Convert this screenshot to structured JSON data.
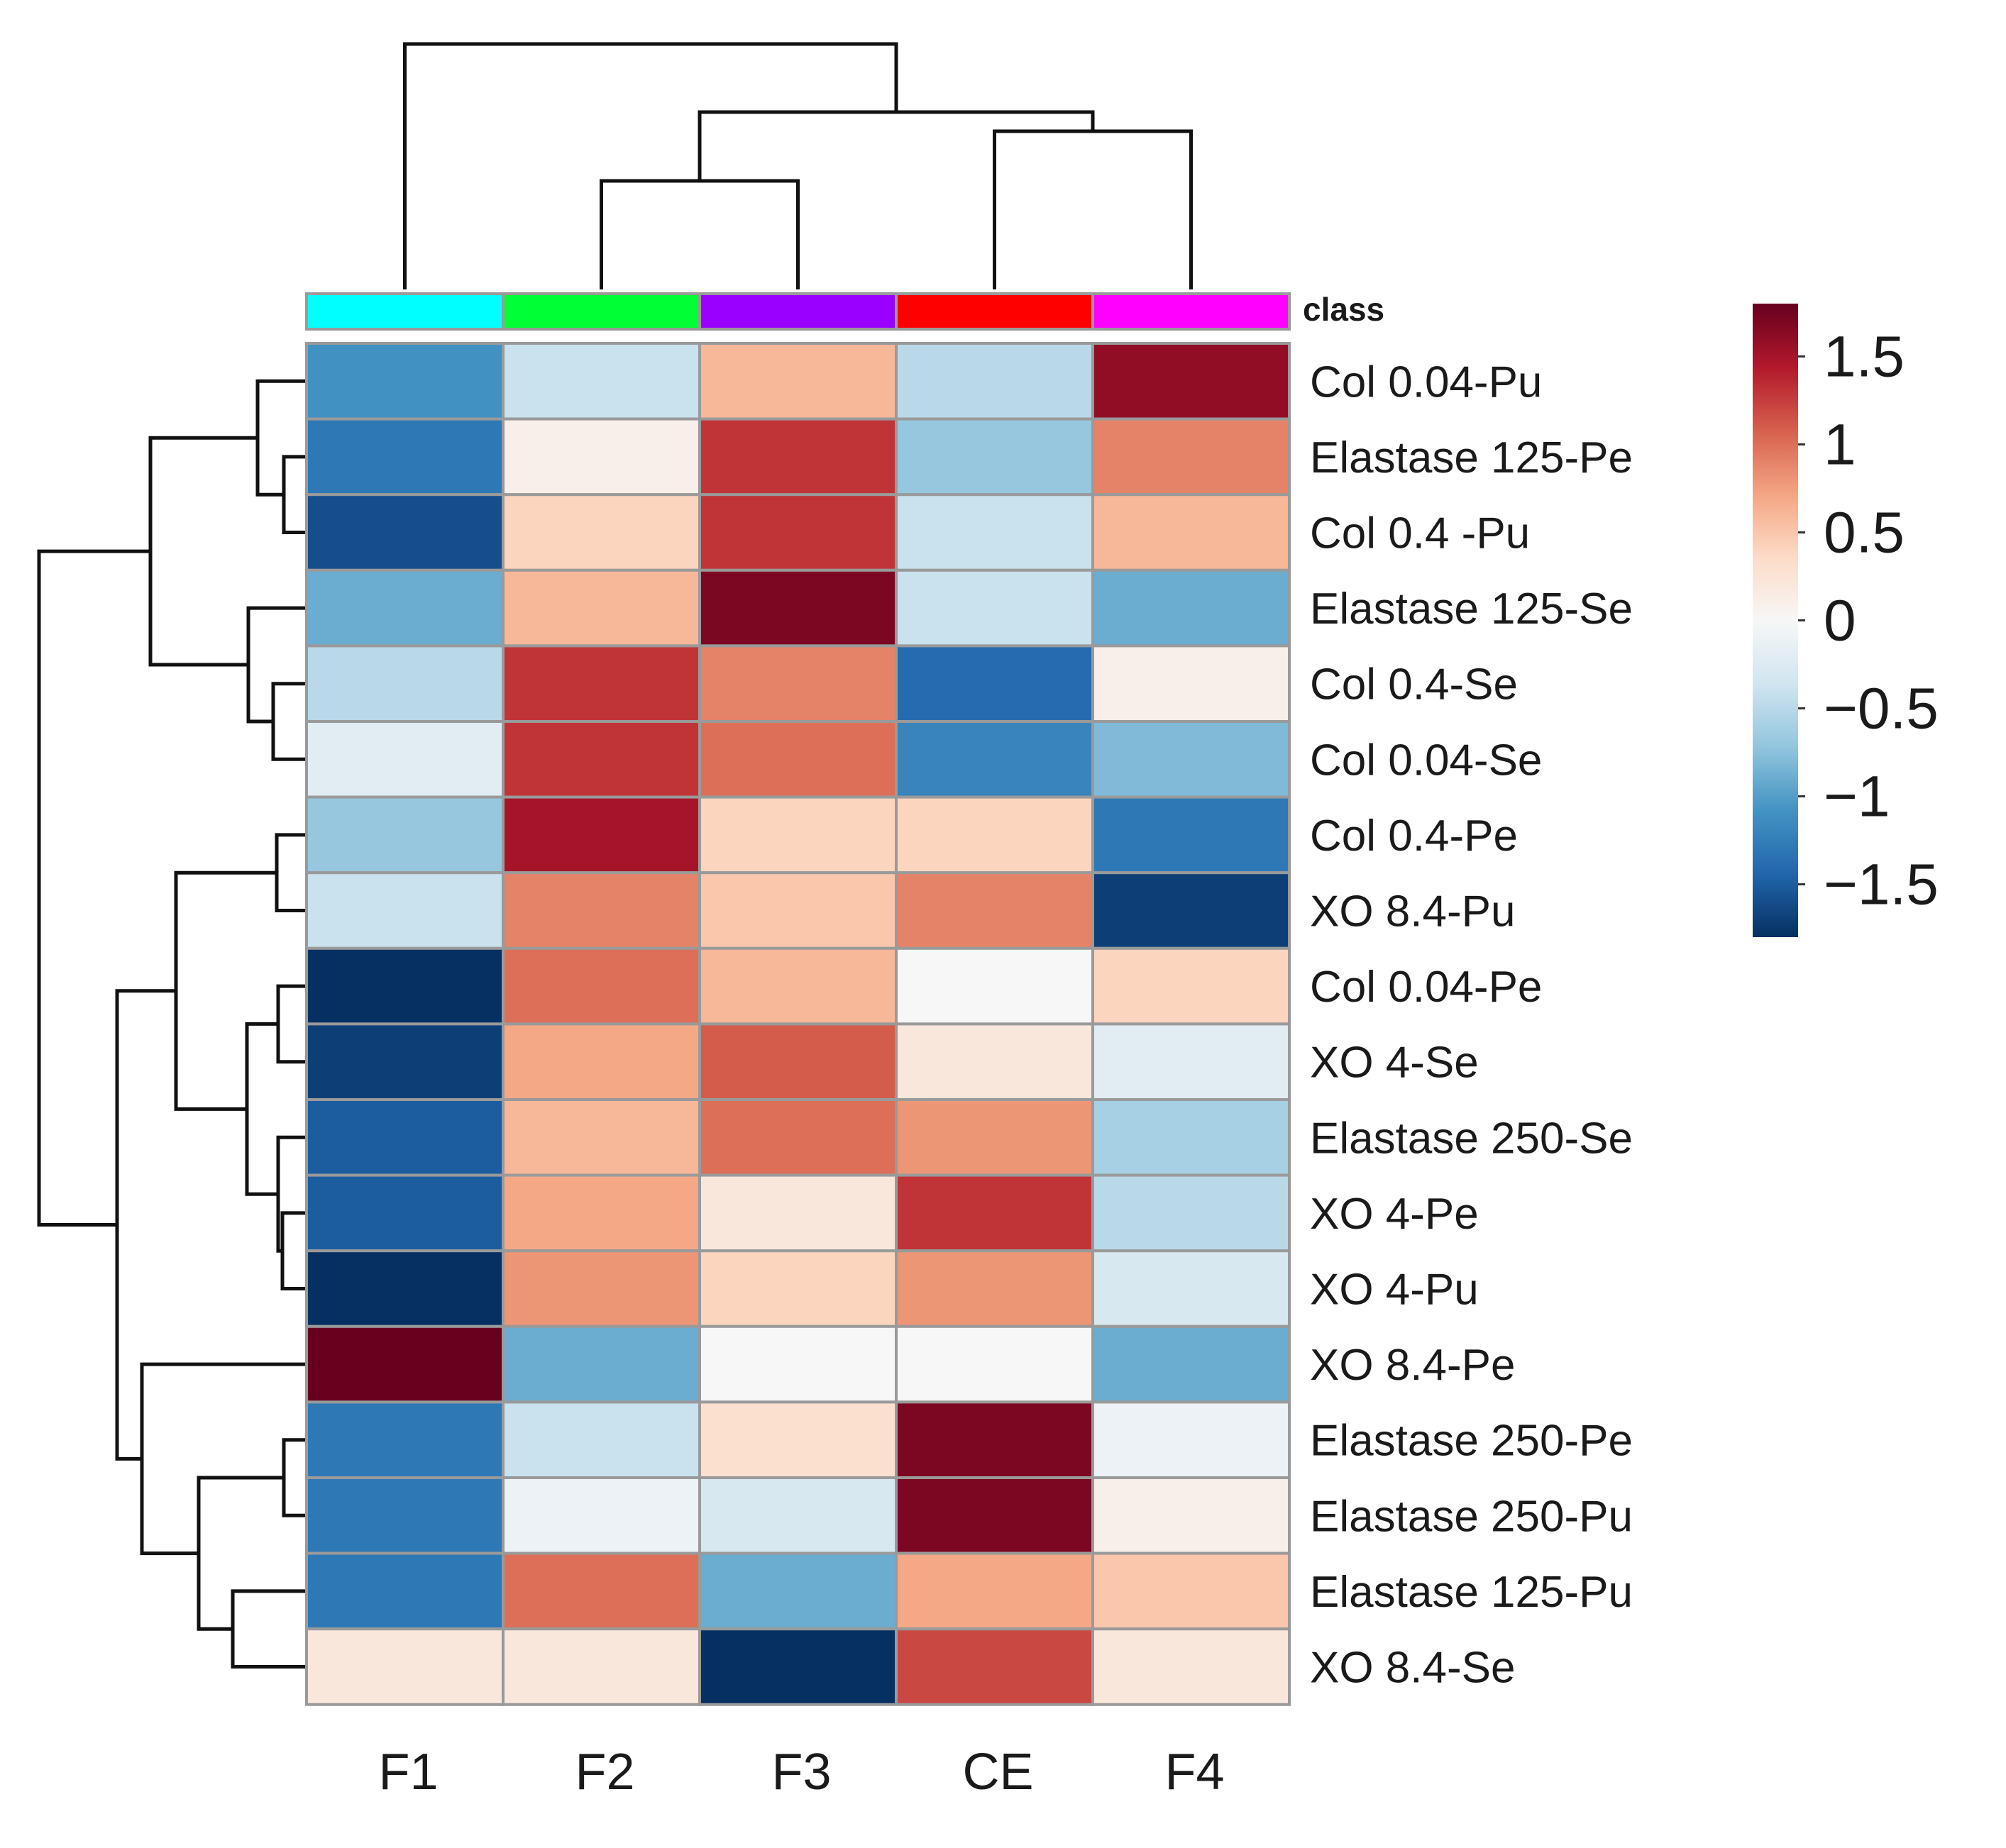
{
  "chart_data": {
    "type": "heatmap",
    "columns": [
      "F1",
      "F2",
      "F3",
      "CE",
      "F4"
    ],
    "rows": [
      "Col 0.04-Pu",
      "Elastase 125-Pe",
      "Col 0.4 -Pu",
      "Elastase 125-Se",
      "Col 0.4-Se",
      "Col 0.04-Se",
      "Col 0.4-Pe",
      "XO 8.4-Pu",
      "Col 0.04-Pe",
      "XO 4-Se",
      "Elastase 250-Se",
      "XO 4-Pe",
      "XO 4-Pu",
      "XO 8.4-Pe",
      "Elastase 250-Pe",
      "Elastase 250-Pu",
      "Elastase 125-Pu",
      "XO 8.4-Se"
    ],
    "values": [
      [
        -1.1,
        -0.4,
        0.6,
        -0.5,
        1.6
      ],
      [
        -1.3,
        0.1,
        1.3,
        -0.7,
        0.9
      ],
      [
        -1.6,
        0.4,
        1.3,
        -0.4,
        0.6
      ],
      [
        -0.9,
        0.6,
        1.7,
        -0.4,
        -0.9
      ],
      [
        -0.5,
        1.3,
        0.9,
        -1.4,
        0.1
      ],
      [
        -0.2,
        1.3,
        1.0,
        -1.2,
        -0.8
      ],
      [
        -0.7,
        1.5,
        0.4,
        0.4,
        -1.3
      ],
      [
        -0.4,
        0.9,
        0.5,
        0.9,
        -1.7
      ],
      [
        -1.8,
        1.0,
        0.6,
        0.0,
        0.4
      ],
      [
        -1.7,
        0.7,
        1.1,
        0.2,
        -0.2
      ],
      [
        -1.5,
        0.6,
        1.0,
        0.8,
        -0.6
      ],
      [
        -1.5,
        0.7,
        0.2,
        1.3,
        -0.5
      ],
      [
        -1.8,
        0.8,
        0.4,
        0.8,
        -0.3
      ],
      [
        1.8,
        -0.9,
        0.0,
        0.0,
        -0.9
      ],
      [
        -1.3,
        -0.4,
        0.3,
        1.7,
        -0.1
      ],
      [
        -1.3,
        -0.1,
        -0.3,
        1.7,
        0.1
      ],
      [
        -1.3,
        1.0,
        -0.9,
        0.7,
        0.5
      ],
      [
        0.2,
        0.2,
        -1.8,
        1.2,
        0.2
      ]
    ],
    "class_annotation": {
      "label": "class",
      "colors": [
        "#00ffff",
        "#00ff33",
        "#9900ff",
        "#ff0000",
        "#ff00ff"
      ]
    },
    "colorbar": {
      "range": [
        -1.8,
        1.8
      ],
      "tick_values": [
        1.5,
        1,
        0.5,
        0,
        -0.5,
        -1,
        -1.5
      ],
      "tick_labels": [
        "1.5",
        "1",
        "0.5",
        "0",
        "−0.5",
        "−1",
        "−1.5"
      ],
      "stops": [
        "#053061",
        "#2166ac",
        "#4393c3",
        "#92c5de",
        "#d1e5f0",
        "#f7f7f7",
        "#fddbc7",
        "#f4a582",
        "#d6604d",
        "#b2182b",
        "#67001f"
      ]
    },
    "column_dendrogram_order": [
      "F1",
      [
        "F2",
        "F3"
      ],
      [
        "CE",
        "F4"
      ]
    ],
    "row_dendrogram": "hierarchical clustering (18 leaves)"
  }
}
